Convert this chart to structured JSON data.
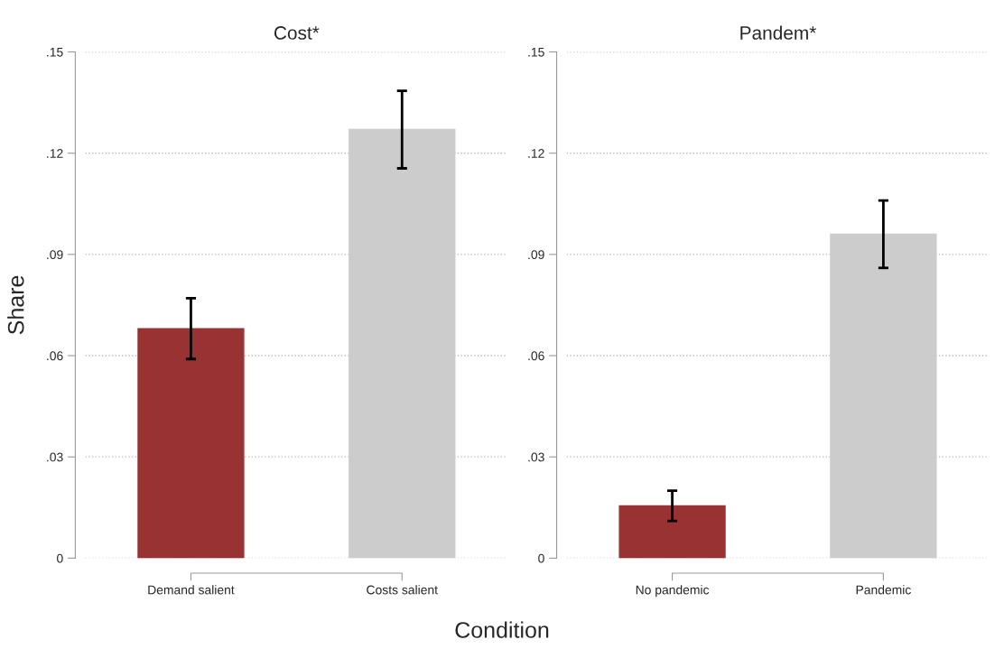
{
  "chart_data": [
    {
      "type": "bar",
      "title": "Cost*",
      "ylabel": "Share",
      "xlabel": "Condition",
      "categories": [
        "Demand salient",
        "Costs salient"
      ],
      "values": [
        0.068,
        0.127
      ],
      "errors": [
        0.009,
        0.0115
      ],
      "colors": [
        "#993333",
        "#cccccc"
      ],
      "ylim": [
        0,
        0.15
      ],
      "yticks": [
        0,
        {
          "value": 0.03,
          "label": ".03"
        },
        {
          "value": 0.06,
          "label": ".06"
        },
        {
          "value": 0.09,
          "label": ".09"
        },
        {
          "value": 0.12,
          "label": ".12"
        },
        {
          "value": 0.15,
          "label": ".15"
        }
      ],
      "grid": "y"
    },
    {
      "type": "bar",
      "title": "Pandem*",
      "categories": [
        "No pandemic",
        "Pandemic"
      ],
      "values": [
        0.0155,
        0.096
      ],
      "errors": [
        0.0045,
        0.01
      ],
      "colors": [
        "#993333",
        "#cccccc"
      ],
      "ylim": [
        0,
        0.15
      ],
      "yticks": [
        0,
        {
          "value": 0.03,
          "label": ".03"
        },
        {
          "value": 0.06,
          "label": ".06"
        },
        {
          "value": 0.09,
          "label": ".09"
        },
        {
          "value": 0.12,
          "label": ".12"
        },
        {
          "value": 0.15,
          "label": ".15"
        }
      ],
      "grid": "y"
    }
  ]
}
